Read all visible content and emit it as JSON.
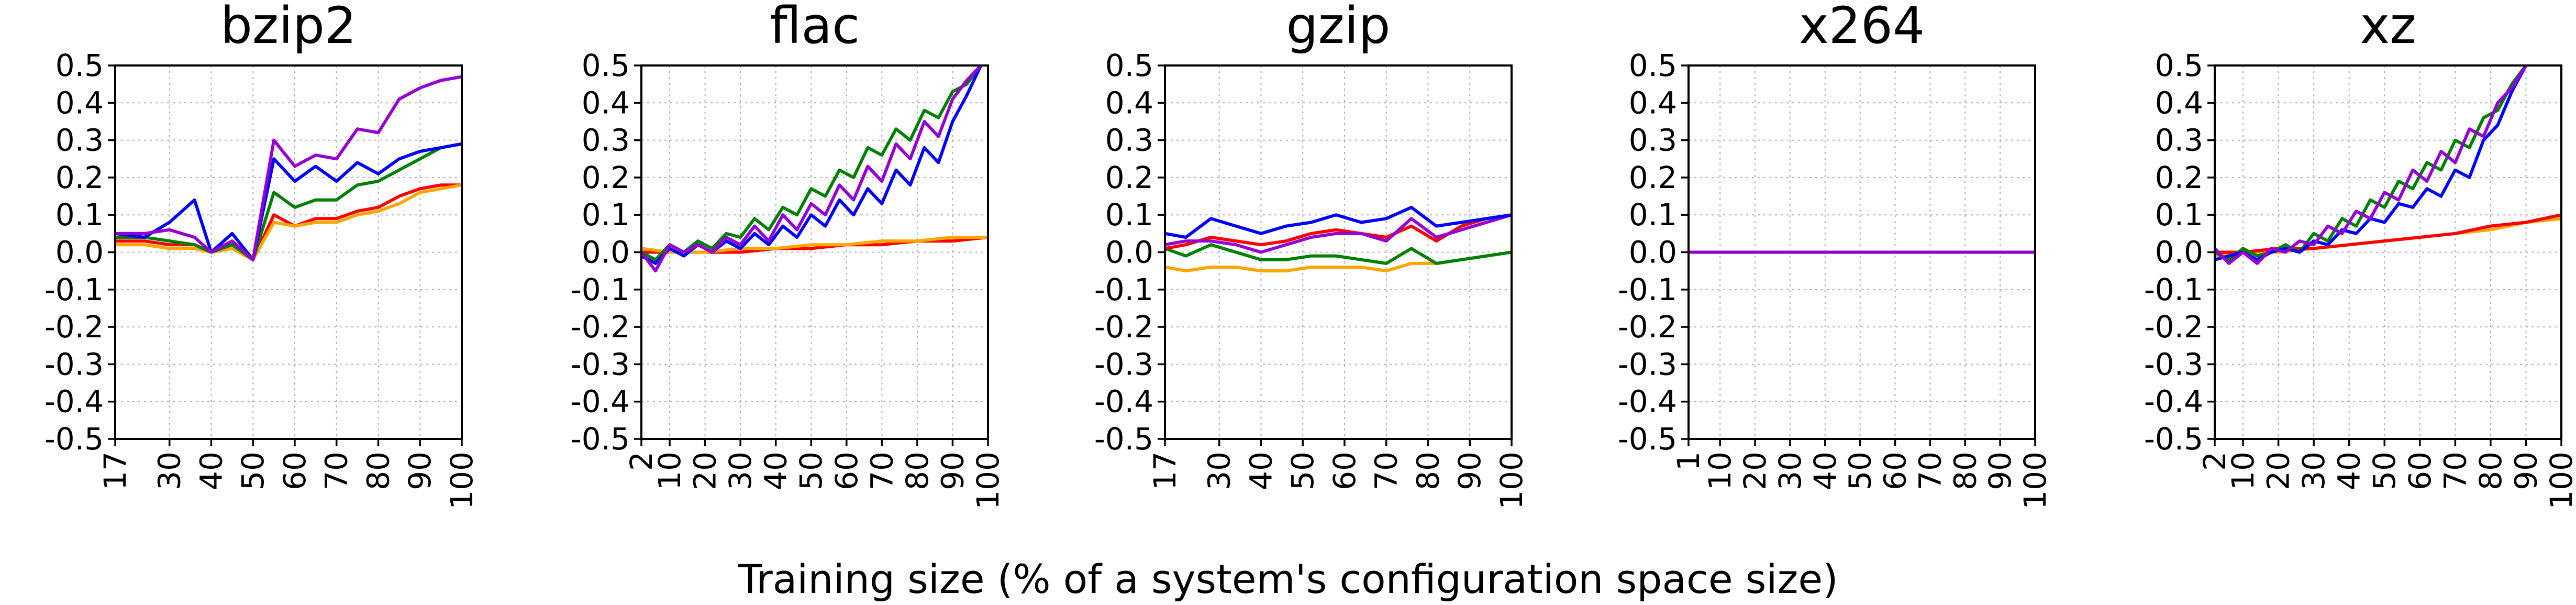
{
  "xlabel": "Training size (% of a system's configuration space size)",
  "colors": {
    "red": "#ff0000",
    "orange": "#ffa500",
    "green": "#008000",
    "blue": "#0000ff",
    "purple": "#9400d3"
  },
  "chart_data": [
    {
      "type": "line",
      "title": "bzip2",
      "ylim": [
        -0.5,
        0.5
      ],
      "yticks": [
        "-0.5",
        "-0.4",
        "-0.3",
        "-0.2",
        "-0.1",
        "0.0",
        "0.1",
        "0.2",
        "0.3",
        "0.4",
        "0.5"
      ],
      "xlim": [
        17,
        100
      ],
      "xticks": [
        17,
        30,
        40,
        50,
        60,
        70,
        80,
        90,
        100
      ],
      "grid": true,
      "series": [
        {
          "color": "red",
          "x": [
            17,
            24,
            30,
            36,
            40,
            45,
            50,
            55,
            60,
            65,
            70,
            75,
            80,
            85,
            90,
            95,
            100
          ],
          "y": [
            0.03,
            0.03,
            0.02,
            0.02,
            0.0,
            0.01,
            -0.02,
            0.1,
            0.07,
            0.09,
            0.09,
            0.11,
            0.12,
            0.15,
            0.17,
            0.18,
            0.18
          ]
        },
        {
          "color": "orange",
          "x": [
            17,
            24,
            30,
            36,
            40,
            45,
            50,
            55,
            60,
            65,
            70,
            75,
            80,
            85,
            90,
            95,
            100
          ],
          "y": [
            0.02,
            0.02,
            0.01,
            0.01,
            0.0,
            0.01,
            -0.02,
            0.08,
            0.07,
            0.08,
            0.08,
            0.1,
            0.11,
            0.13,
            0.16,
            0.17,
            0.18
          ]
        },
        {
          "color": "green",
          "x": [
            17,
            24,
            30,
            36,
            40,
            45,
            50,
            55,
            60,
            65,
            70,
            75,
            80,
            85,
            90,
            95,
            100
          ],
          "y": [
            0.04,
            0.04,
            0.03,
            0.02,
            0.0,
            0.02,
            -0.02,
            0.16,
            0.12,
            0.14,
            0.14,
            0.18,
            0.19,
            0.22,
            0.25,
            0.28,
            0.29
          ]
        },
        {
          "color": "blue",
          "x": [
            17,
            24,
            30,
            36,
            40,
            45,
            50,
            55,
            60,
            65,
            70,
            75,
            80,
            85,
            90,
            95,
            100
          ],
          "y": [
            0.05,
            0.04,
            0.08,
            0.14,
            0.0,
            0.05,
            -0.02,
            0.25,
            0.19,
            0.23,
            0.19,
            0.24,
            0.21,
            0.25,
            0.27,
            0.28,
            0.29
          ]
        },
        {
          "color": "purple",
          "x": [
            17,
            24,
            30,
            36,
            40,
            45,
            50,
            55,
            60,
            65,
            70,
            75,
            80,
            85,
            90,
            95,
            100
          ],
          "y": [
            0.05,
            0.05,
            0.06,
            0.04,
            0.0,
            0.03,
            -0.02,
            0.3,
            0.23,
            0.26,
            0.25,
            0.33,
            0.32,
            0.41,
            0.44,
            0.46,
            0.47
          ]
        }
      ]
    },
    {
      "type": "line",
      "title": "flac",
      "ylim": [
        -0.5,
        0.5
      ],
      "yticks": [
        "-0.5",
        "-0.4",
        "-0.3",
        "-0.2",
        "-0.1",
        "0.0",
        "0.1",
        "0.2",
        "0.3",
        "0.4",
        "0.5"
      ],
      "xlim": [
        2,
        100
      ],
      "xticks": [
        2,
        10,
        20,
        30,
        40,
        50,
        60,
        70,
        80,
        90,
        100
      ],
      "grid": true,
      "series": [
        {
          "color": "red",
          "x": [
            2,
            10,
            20,
            30,
            40,
            50,
            60,
            70,
            80,
            90,
            100
          ],
          "y": [
            0.0,
            0.0,
            0.0,
            0.0,
            0.01,
            0.01,
            0.02,
            0.02,
            0.03,
            0.03,
            0.04
          ]
        },
        {
          "color": "orange",
          "x": [
            2,
            10,
            20,
            30,
            40,
            50,
            60,
            70,
            80,
            90,
            100
          ],
          "y": [
            0.01,
            0.0,
            0.0,
            0.01,
            0.01,
            0.02,
            0.02,
            0.03,
            0.03,
            0.04,
            0.04
          ]
        },
        {
          "color": "green",
          "x": [
            2,
            6,
            10,
            14,
            18,
            22,
            26,
            30,
            34,
            38,
            42,
            46,
            50,
            54,
            58,
            62,
            66,
            70,
            74,
            78,
            82,
            86,
            90,
            94,
            98
          ],
          "y": [
            0.0,
            -0.02,
            0.02,
            0.0,
            0.03,
            0.01,
            0.05,
            0.04,
            0.09,
            0.06,
            0.12,
            0.1,
            0.17,
            0.15,
            0.22,
            0.2,
            0.28,
            0.26,
            0.33,
            0.3,
            0.38,
            0.36,
            0.43,
            0.45,
            0.5
          ]
        },
        {
          "color": "blue",
          "x": [
            2,
            6,
            10,
            14,
            18,
            22,
            26,
            30,
            34,
            38,
            42,
            46,
            50,
            54,
            58,
            62,
            66,
            70,
            74,
            78,
            82,
            86,
            90,
            94,
            98
          ],
          "y": [
            -0.01,
            -0.03,
            0.01,
            -0.01,
            0.02,
            0.0,
            0.03,
            0.01,
            0.05,
            0.02,
            0.07,
            0.04,
            0.1,
            0.07,
            0.14,
            0.1,
            0.17,
            0.13,
            0.22,
            0.18,
            0.28,
            0.24,
            0.35,
            0.42,
            0.5
          ]
        },
        {
          "color": "purple",
          "x": [
            2,
            6,
            10,
            14,
            18,
            22,
            26,
            30,
            34,
            38,
            42,
            46,
            50,
            54,
            58,
            62,
            66,
            70,
            74,
            78,
            82,
            86,
            90,
            94,
            98
          ],
          "y": [
            0.0,
            -0.05,
            0.02,
            0.0,
            0.02,
            0.0,
            0.04,
            0.02,
            0.07,
            0.03,
            0.1,
            0.06,
            0.13,
            0.1,
            0.18,
            0.14,
            0.23,
            0.19,
            0.29,
            0.25,
            0.35,
            0.31,
            0.41,
            0.46,
            0.5
          ]
        }
      ]
    },
    {
      "type": "line",
      "title": "gzip",
      "ylim": [
        -0.5,
        0.5
      ],
      "yticks": [
        "-0.5",
        "-0.4",
        "-0.3",
        "-0.2",
        "-0.1",
        "0.0",
        "0.1",
        "0.2",
        "0.3",
        "0.4",
        "0.5"
      ],
      "xlim": [
        17,
        100
      ],
      "xticks": [
        17,
        30,
        40,
        50,
        60,
        70,
        80,
        90,
        100
      ],
      "grid": true,
      "series": [
        {
          "color": "orange",
          "x": [
            17,
            22,
            28,
            34,
            40,
            46,
            52,
            58,
            64,
            70,
            76,
            82,
            88,
            94,
            100
          ],
          "y": [
            -0.04,
            -0.05,
            -0.04,
            -0.04,
            -0.05,
            -0.05,
            -0.04,
            -0.04,
            -0.04,
            -0.05,
            -0.03,
            -0.03,
            -0.02,
            -0.01,
            0.0
          ]
        },
        {
          "color": "green",
          "x": [
            17,
            22,
            28,
            34,
            40,
            46,
            52,
            58,
            64,
            70,
            76,
            82,
            88,
            94,
            100
          ],
          "y": [
            0.01,
            -0.01,
            0.02,
            0.0,
            -0.02,
            -0.02,
            -0.01,
            -0.01,
            -0.02,
            -0.03,
            0.01,
            -0.03,
            -0.02,
            -0.01,
            0.0
          ]
        },
        {
          "color": "red",
          "x": [
            17,
            22,
            28,
            34,
            40,
            46,
            52,
            58,
            64,
            70,
            76,
            82,
            88,
            94,
            100
          ],
          "y": [
            0.01,
            0.02,
            0.04,
            0.03,
            0.02,
            0.03,
            0.05,
            0.06,
            0.05,
            0.04,
            0.07,
            0.03,
            0.07,
            0.09,
            0.1
          ]
        },
        {
          "color": "purple",
          "x": [
            17,
            22,
            28,
            34,
            40,
            46,
            52,
            58,
            64,
            70,
            76,
            82,
            88,
            94,
            100
          ],
          "y": [
            0.02,
            0.03,
            0.03,
            0.02,
            0.0,
            0.02,
            0.04,
            0.05,
            0.05,
            0.03,
            0.09,
            0.04,
            0.06,
            0.08,
            0.1
          ]
        },
        {
          "color": "blue",
          "x": [
            17,
            22,
            28,
            34,
            40,
            46,
            52,
            58,
            64,
            70,
            76,
            82,
            88,
            94,
            100
          ],
          "y": [
            0.05,
            0.04,
            0.09,
            0.07,
            0.05,
            0.07,
            0.08,
            0.1,
            0.08,
            0.09,
            0.12,
            0.07,
            0.08,
            0.09,
            0.1
          ]
        }
      ]
    },
    {
      "type": "line",
      "title": "x264",
      "ylim": [
        -0.5,
        0.5
      ],
      "yticks": [
        "-0.5",
        "-0.4",
        "-0.3",
        "-0.2",
        "-0.1",
        "0.0",
        "0.1",
        "0.2",
        "0.3",
        "0.4",
        "0.5"
      ],
      "xlim": [
        1,
        100
      ],
      "xticks": [
        1,
        10,
        20,
        30,
        40,
        50,
        60,
        70,
        80,
        90,
        100
      ],
      "grid": true,
      "series": [
        {
          "color": "red",
          "x": [
            1,
            100
          ],
          "y": [
            0.0,
            0.0
          ]
        },
        {
          "color": "orange",
          "x": [
            1,
            100
          ],
          "y": [
            0.0,
            0.0
          ]
        },
        {
          "color": "green",
          "x": [
            1,
            100
          ],
          "y": [
            0.0,
            0.0
          ]
        },
        {
          "color": "blue",
          "x": [
            1,
            100
          ],
          "y": [
            0.0,
            0.0
          ]
        },
        {
          "color": "purple",
          "x": [
            1,
            100
          ],
          "y": [
            0.0,
            0.0
          ]
        }
      ]
    },
    {
      "type": "line",
      "title": "xz",
      "ylim": [
        -0.5,
        0.5
      ],
      "yticks": [
        "-0.5",
        "-0.4",
        "-0.3",
        "-0.2",
        "-0.1",
        "0.0",
        "0.1",
        "0.2",
        "0.3",
        "0.4",
        "0.5"
      ],
      "xlim": [
        2,
        100
      ],
      "xticks": [
        2,
        10,
        20,
        30,
        40,
        50,
        60,
        70,
        80,
        90,
        100
      ],
      "grid": true,
      "series": [
        {
          "color": "orange",
          "x": [
            2,
            10,
            20,
            30,
            40,
            50,
            60,
            70,
            80,
            90,
            100
          ],
          "y": [
            -0.01,
            0.0,
            0.0,
            0.01,
            0.02,
            0.03,
            0.04,
            0.05,
            0.06,
            0.08,
            0.09
          ]
        },
        {
          "color": "red",
          "x": [
            2,
            10,
            20,
            30,
            40,
            50,
            60,
            70,
            80,
            90,
            100
          ],
          "y": [
            0.0,
            0.0,
            0.01,
            0.01,
            0.02,
            0.03,
            0.04,
            0.05,
            0.07,
            0.08,
            0.1
          ]
        },
        {
          "color": "green",
          "x": [
            2,
            6,
            10,
            14,
            18,
            22,
            26,
            30,
            34,
            38,
            42,
            46,
            50,
            54,
            58,
            62,
            66,
            70,
            74,
            78,
            82,
            86,
            90
          ],
          "y": [
            0.0,
            -0.02,
            0.01,
            -0.01,
            0.0,
            0.02,
            0.0,
            0.05,
            0.03,
            0.09,
            0.07,
            0.14,
            0.12,
            0.19,
            0.17,
            0.24,
            0.22,
            0.3,
            0.28,
            0.36,
            0.38,
            0.45,
            0.5
          ]
        },
        {
          "color": "blue",
          "x": [
            2,
            6,
            10,
            14,
            18,
            22,
            26,
            30,
            34,
            38,
            42,
            46,
            50,
            54,
            58,
            62,
            66,
            70,
            74,
            78,
            82,
            86,
            90
          ],
          "y": [
            -0.02,
            -0.01,
            0.0,
            -0.02,
            0.0,
            0.01,
            0.0,
            0.03,
            0.02,
            0.06,
            0.05,
            0.09,
            0.08,
            0.13,
            0.12,
            0.17,
            0.15,
            0.22,
            0.2,
            0.3,
            0.34,
            0.43,
            0.5
          ]
        },
        {
          "color": "purple",
          "x": [
            2,
            6,
            10,
            14,
            18,
            22,
            26,
            30,
            34,
            38,
            42,
            46,
            50,
            54,
            58,
            62,
            66,
            70,
            74,
            78,
            82,
            86,
            90
          ],
          "y": [
            0.01,
            -0.03,
            0.0,
            -0.03,
            0.01,
            0.0,
            0.03,
            0.02,
            0.07,
            0.05,
            0.11,
            0.09,
            0.16,
            0.14,
            0.22,
            0.19,
            0.27,
            0.24,
            0.33,
            0.31,
            0.4,
            0.44,
            0.5
          ]
        }
      ]
    }
  ]
}
